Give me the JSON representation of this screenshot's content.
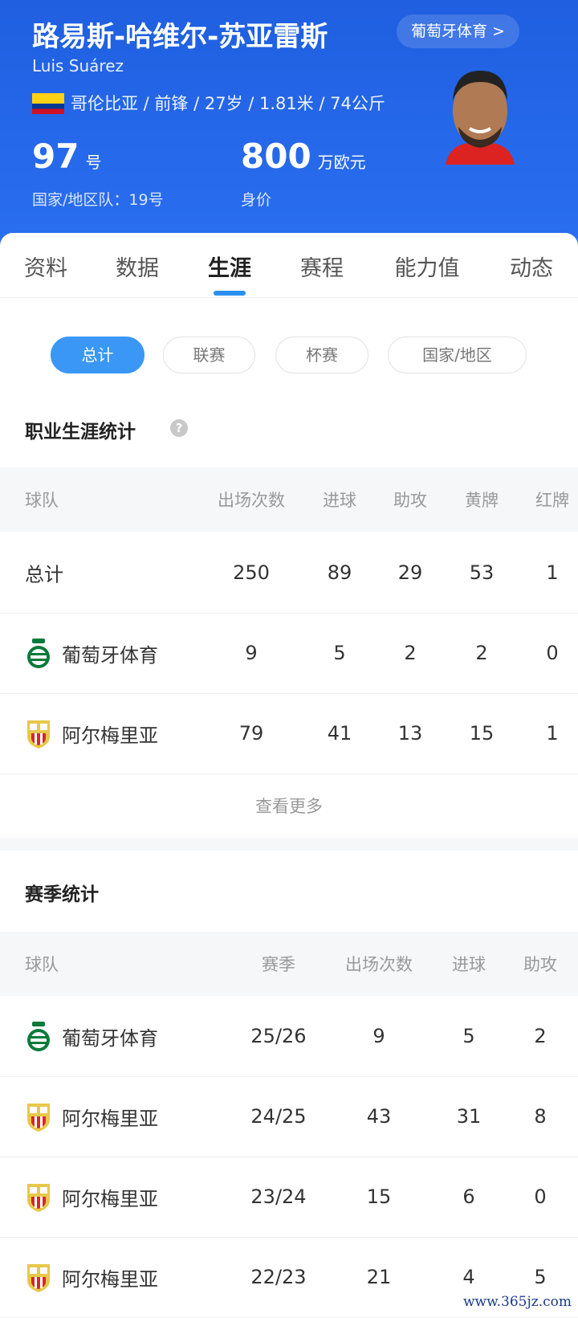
{
  "header": {
    "name_cn": "路易斯-哈维尔-苏亚雷斯",
    "club_button": "葡萄牙体育 >",
    "name_en": "Luis Suárez",
    "flag_icon": "colombia-flag",
    "info": "哥伦比亚 / 前锋 / 27岁 / 1.81米 / 74公斤",
    "number": "97",
    "number_unit": "号",
    "national_number": "国家/地区队：19号",
    "value": "800",
    "value_unit": "万欧元",
    "value_label": "身价",
    "accent": "#1f5fe0"
  },
  "tabs": [
    {
      "label": "资料"
    },
    {
      "label": "数据"
    },
    {
      "label": "生涯",
      "active": true
    },
    {
      "label": "赛程"
    },
    {
      "label": "能力值"
    },
    {
      "label": "动态"
    }
  ],
  "filters": [
    {
      "label": "总计",
      "active": true
    },
    {
      "label": "联赛"
    },
    {
      "label": "杯赛"
    },
    {
      "label": "国家/地区"
    }
  ],
  "career": {
    "title": "职业生涯统计",
    "help_icon": "question-icon",
    "columns": [
      "球队",
      "出场次数",
      "进球",
      "助攻",
      "黄牌",
      "红牌"
    ],
    "rows": [
      {
        "team": "总计",
        "cells": [
          "250",
          "89",
          "29",
          "53",
          "1"
        ]
      },
      {
        "team": "葡萄牙体育",
        "badge": "sporting",
        "cells": [
          "9",
          "5",
          "2",
          "2",
          "0"
        ]
      },
      {
        "team": "阿尔梅里亚",
        "badge": "almeria",
        "cells": [
          "79",
          "41",
          "13",
          "15",
          "1"
        ]
      }
    ],
    "more": "查看更多"
  },
  "season": {
    "title": "赛季统计",
    "columns": [
      "球队",
      "赛季",
      "出场次数",
      "进球",
      "助攻"
    ],
    "rows": [
      {
        "team": "葡萄牙体育",
        "badge": "sporting",
        "cells": [
          "25/26",
          "9",
          "5",
          "2"
        ]
      },
      {
        "team": "阿尔梅里亚",
        "badge": "almeria",
        "cells": [
          "24/25",
          "43",
          "31",
          "8"
        ]
      },
      {
        "team": "阿尔梅里亚",
        "badge": "almeria",
        "cells": [
          "23/24",
          "15",
          "6",
          "0"
        ]
      },
      {
        "team": "阿尔梅里亚",
        "badge": "almeria",
        "cells": [
          "22/23",
          "21",
          "4",
          "5"
        ]
      }
    ]
  },
  "watermark": "www.365jz.com"
}
